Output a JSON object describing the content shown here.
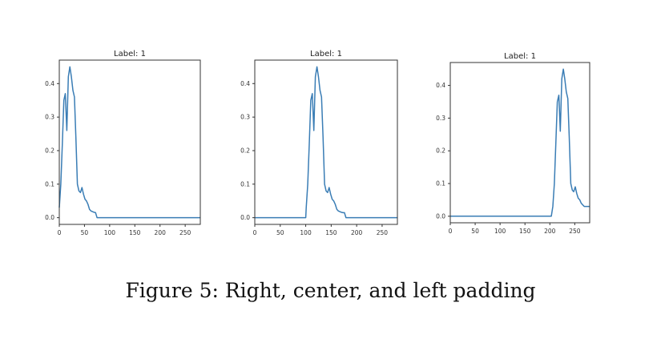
{
  "caption": "Figure 5: Right, center, and left padding",
  "line_color": "#3a7db5",
  "chart_data": [
    {
      "type": "line",
      "title": "Label: 1",
      "xlim": [
        0,
        280
      ],
      "ylim": [
        -0.02,
        0.47
      ],
      "xticks": [
        0,
        50,
        100,
        150,
        200,
        250
      ],
      "yticks": [
        0.0,
        0.1,
        0.2,
        0.3,
        0.4
      ],
      "ytick_labels": [
        "0.0",
        "0.1",
        "0.2",
        "0.3",
        "0.4"
      ],
      "series": [
        {
          "x": [
            0,
            3,
            6,
            9,
            12,
            15,
            18,
            21,
            24,
            27,
            30,
            33,
            36,
            39,
            42,
            45,
            48,
            51,
            54,
            57,
            60,
            63,
            66,
            69,
            72,
            75,
            78,
            81,
            84,
            87,
            90,
            95,
            100,
            150,
            200,
            250,
            280
          ],
          "y": [
            0.03,
            0.1,
            0.22,
            0.35,
            0.37,
            0.26,
            0.42,
            0.45,
            0.42,
            0.38,
            0.36,
            0.24,
            0.1,
            0.08,
            0.075,
            0.09,
            0.07,
            0.055,
            0.05,
            0.04,
            0.025,
            0.02,
            0.018,
            0.016,
            0.015,
            0.0,
            0.0,
            0.0,
            0.0,
            0.0,
            0.0,
            0.0,
            0.0,
            0.0,
            0.0,
            0.0,
            0.0
          ]
        }
      ]
    },
    {
      "type": "line",
      "title": "Label: 1",
      "xlim": [
        0,
        280
      ],
      "ylim": [
        -0.02,
        0.47
      ],
      "xticks": [
        0,
        50,
        100,
        150,
        200,
        250
      ],
      "yticks": [
        0.0,
        0.1,
        0.2,
        0.3,
        0.4
      ],
      "ytick_labels": [
        "0.0",
        "0.1",
        "0.2",
        "0.3",
        "0.4"
      ],
      "series": [
        {
          "x": [
            0,
            50,
            100,
            101,
            104,
            107,
            110,
            113,
            116,
            119,
            122,
            125,
            128,
            131,
            134,
            137,
            140,
            143,
            146,
            149,
            152,
            155,
            158,
            161,
            164,
            167,
            170,
            173,
            176,
            179,
            182,
            190,
            200,
            250,
            280
          ],
          "y": [
            0.0,
            0.0,
            0.0,
            0.03,
            0.1,
            0.22,
            0.35,
            0.37,
            0.26,
            0.42,
            0.45,
            0.42,
            0.38,
            0.36,
            0.24,
            0.1,
            0.08,
            0.075,
            0.09,
            0.07,
            0.055,
            0.05,
            0.04,
            0.025,
            0.02,
            0.018,
            0.016,
            0.015,
            0.015,
            0.0,
            0.0,
            0.0,
            0.0,
            0.0,
            0.0
          ]
        }
      ]
    },
    {
      "type": "line",
      "title": "Label: 1",
      "xlim": [
        0,
        280
      ],
      "ylim": [
        -0.02,
        0.47
      ],
      "xticks": [
        0,
        50,
        100,
        150,
        200,
        250
      ],
      "yticks": [
        0.0,
        0.1,
        0.2,
        0.3,
        0.4
      ],
      "ytick_labels": [
        "0.0",
        "0.1",
        "0.2",
        "0.3",
        "0.4"
      ],
      "series": [
        {
          "x": [
            0,
            50,
            100,
            150,
            200,
            203,
            206,
            209,
            212,
            215,
            218,
            221,
            224,
            227,
            230,
            233,
            236,
            239,
            242,
            245,
            248,
            251,
            254,
            257,
            260,
            263,
            266,
            269,
            272,
            275,
            278,
            280
          ],
          "y": [
            0.0,
            0.0,
            0.0,
            0.0,
            0.0,
            0.0,
            0.03,
            0.1,
            0.22,
            0.35,
            0.37,
            0.26,
            0.42,
            0.45,
            0.42,
            0.38,
            0.36,
            0.24,
            0.1,
            0.08,
            0.075,
            0.09,
            0.07,
            0.055,
            0.05,
            0.04,
            0.035,
            0.03,
            0.03,
            0.03,
            0.03,
            0.03
          ]
        }
      ]
    }
  ]
}
